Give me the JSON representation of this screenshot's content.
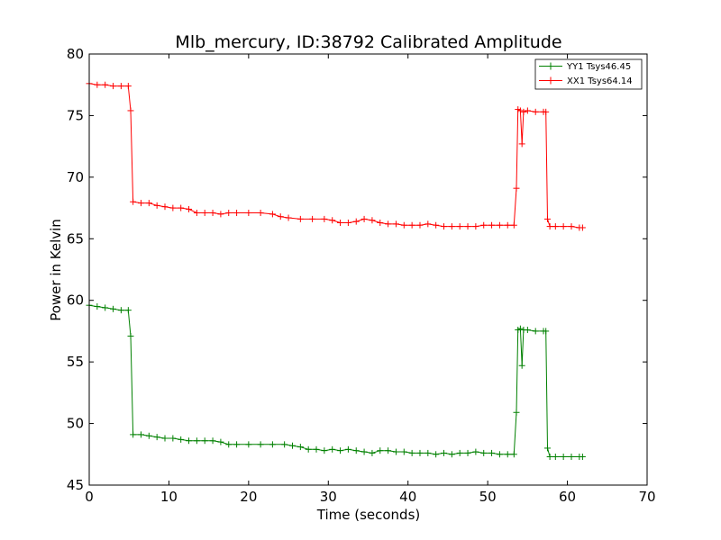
{
  "chart_data": {
    "type": "line",
    "title": "Mlb_mercury, ID:38792 Calibrated Amplitude",
    "xlabel": "Time (seconds)",
    "ylabel": "Power in Kelvin",
    "xlim": [
      0,
      70
    ],
    "ylim": [
      45,
      80
    ],
    "xticks": [
      0,
      10,
      20,
      30,
      40,
      50,
      60,
      70
    ],
    "yticks": [
      45,
      50,
      55,
      60,
      65,
      70,
      75,
      80
    ],
    "grid": false,
    "legend_position": "top-right",
    "series": [
      {
        "name": "YY1 Tsys46.45",
        "color": "#008000",
        "marker": "+",
        "points": [
          [
            0,
            59.6
          ],
          [
            1,
            59.5
          ],
          [
            2,
            59.4
          ],
          [
            3,
            59.3
          ],
          [
            4,
            59.2
          ],
          [
            4.9,
            59.2
          ],
          [
            5.2,
            57.1
          ],
          [
            5.5,
            49.1
          ],
          [
            6.5,
            49.1
          ],
          [
            7.5,
            49.0
          ],
          [
            8.5,
            48.9
          ],
          [
            9.5,
            48.8
          ],
          [
            10.5,
            48.8
          ],
          [
            11.5,
            48.7
          ],
          [
            12.5,
            48.6
          ],
          [
            13.5,
            48.6
          ],
          [
            14.5,
            48.6
          ],
          [
            15.5,
            48.6
          ],
          [
            16.5,
            48.5
          ],
          [
            17.5,
            48.3
          ],
          [
            18.5,
            48.3
          ],
          [
            20,
            48.3
          ],
          [
            21.5,
            48.3
          ],
          [
            23,
            48.3
          ],
          [
            24.5,
            48.3
          ],
          [
            25.5,
            48.2
          ],
          [
            26.5,
            48.1
          ],
          [
            27.5,
            47.9
          ],
          [
            28.5,
            47.9
          ],
          [
            29.5,
            47.8
          ],
          [
            30.5,
            47.9
          ],
          [
            31.5,
            47.8
          ],
          [
            32.5,
            47.9
          ],
          [
            33.5,
            47.8
          ],
          [
            34.5,
            47.7
          ],
          [
            35.5,
            47.6
          ],
          [
            36.5,
            47.8
          ],
          [
            37.5,
            47.8
          ],
          [
            38.5,
            47.7
          ],
          [
            39.5,
            47.7
          ],
          [
            40.5,
            47.6
          ],
          [
            41.5,
            47.6
          ],
          [
            42.5,
            47.6
          ],
          [
            43.5,
            47.5
          ],
          [
            44.5,
            47.6
          ],
          [
            45.5,
            47.5
          ],
          [
            46.5,
            47.6
          ],
          [
            47.5,
            47.6
          ],
          [
            48.5,
            47.7
          ],
          [
            49.5,
            47.6
          ],
          [
            50.5,
            47.6
          ],
          [
            51.5,
            47.5
          ],
          [
            52.5,
            47.5
          ],
          [
            53.3,
            47.5
          ],
          [
            53.6,
            50.9
          ],
          [
            53.8,
            57.6
          ],
          [
            54.1,
            57.7
          ],
          [
            54.3,
            54.7
          ],
          [
            54.5,
            57.6
          ],
          [
            55,
            57.6
          ],
          [
            56,
            57.5
          ],
          [
            57,
            57.5
          ],
          [
            57.3,
            57.5
          ],
          [
            57.5,
            48.0
          ],
          [
            57.8,
            47.3
          ],
          [
            58.5,
            47.3
          ],
          [
            59.5,
            47.3
          ],
          [
            60.5,
            47.3
          ],
          [
            61.5,
            47.3
          ],
          [
            61.9,
            47.3
          ]
        ]
      },
      {
        "name": "XX1 Tsys64.14",
        "color": "#ff0000",
        "marker": "+",
        "points": [
          [
            0,
            77.6
          ],
          [
            1,
            77.5
          ],
          [
            2,
            77.5
          ],
          [
            3,
            77.4
          ],
          [
            4,
            77.4
          ],
          [
            4.9,
            77.4
          ],
          [
            5.2,
            75.4
          ],
          [
            5.5,
            68.0
          ],
          [
            6.5,
            67.9
          ],
          [
            7.5,
            67.9
          ],
          [
            8.5,
            67.7
          ],
          [
            9.5,
            67.6
          ],
          [
            10.5,
            67.5
          ],
          [
            11.5,
            67.5
          ],
          [
            12.5,
            67.4
          ],
          [
            13.5,
            67.1
          ],
          [
            14.5,
            67.1
          ],
          [
            15.5,
            67.1
          ],
          [
            16.5,
            67.0
          ],
          [
            17.5,
            67.1
          ],
          [
            18.5,
            67.1
          ],
          [
            20,
            67.1
          ],
          [
            21.5,
            67.1
          ],
          [
            23,
            67.0
          ],
          [
            24,
            66.8
          ],
          [
            25,
            66.7
          ],
          [
            26.5,
            66.6
          ],
          [
            28,
            66.6
          ],
          [
            29.5,
            66.6
          ],
          [
            30.5,
            66.5
          ],
          [
            31.5,
            66.3
          ],
          [
            32.5,
            66.3
          ],
          [
            33.5,
            66.4
          ],
          [
            34.5,
            66.6
          ],
          [
            35.5,
            66.5
          ],
          [
            36.5,
            66.3
          ],
          [
            37.5,
            66.2
          ],
          [
            38.5,
            66.2
          ],
          [
            39.5,
            66.1
          ],
          [
            40.5,
            66.1
          ],
          [
            41.5,
            66.1
          ],
          [
            42.5,
            66.2
          ],
          [
            43.5,
            66.1
          ],
          [
            44.5,
            66.0
          ],
          [
            45.5,
            66.0
          ],
          [
            46.5,
            66.0
          ],
          [
            47.5,
            66.0
          ],
          [
            48.5,
            66.0
          ],
          [
            49.5,
            66.1
          ],
          [
            50.5,
            66.1
          ],
          [
            51.5,
            66.1
          ],
          [
            52.5,
            66.1
          ],
          [
            53.3,
            66.1
          ],
          [
            53.6,
            69.1
          ],
          [
            53.8,
            75.5
          ],
          [
            54.1,
            75.4
          ],
          [
            54.3,
            72.7
          ],
          [
            54.5,
            75.3
          ],
          [
            55,
            75.4
          ],
          [
            56,
            75.3
          ],
          [
            57,
            75.3
          ],
          [
            57.3,
            75.3
          ],
          [
            57.5,
            66.6
          ],
          [
            57.8,
            66.0
          ],
          [
            58.5,
            66.0
          ],
          [
            59.5,
            66.0
          ],
          [
            60.5,
            66.0
          ],
          [
            61.5,
            65.9
          ],
          [
            61.9,
            65.9
          ]
        ]
      }
    ]
  }
}
